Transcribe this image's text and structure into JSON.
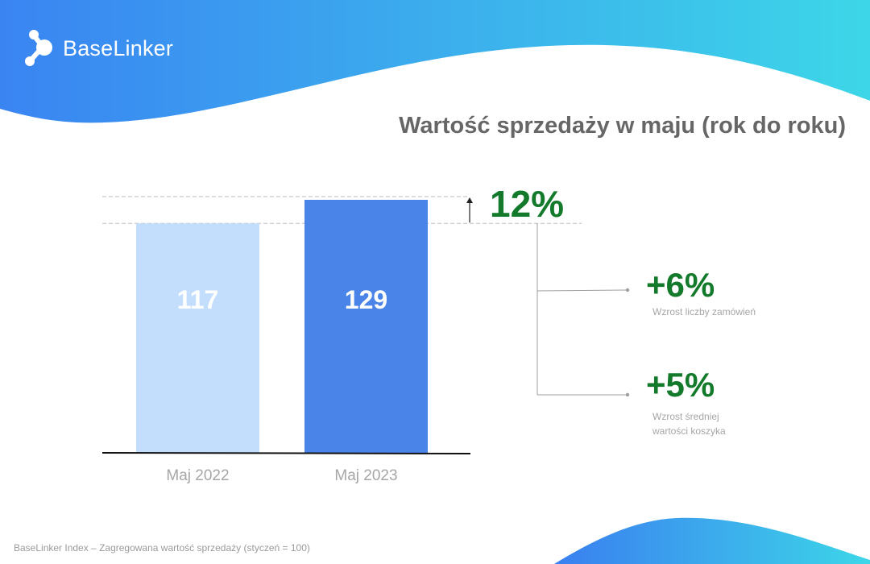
{
  "brand": {
    "name": "BaseLinker"
  },
  "colors": {
    "accent_blue": "#4a84e8",
    "light_blue": "#c2defc",
    "green": "#137a2c",
    "wave_start": "#3a84f2",
    "wave_end": "#3dd6e8"
  },
  "chart_data": {
    "type": "bar",
    "title": "Wartość sprzedaży w maju (rok do roku)",
    "categories": [
      "Maj 2022",
      "Maj 2023"
    ],
    "values": [
      117,
      129
    ],
    "data_labels": [
      "117",
      "129"
    ],
    "xlabel": "",
    "ylabel": "",
    "ylim": [
      0,
      132
    ],
    "grid": false,
    "change_label": "12%"
  },
  "breakdown": [
    {
      "value": "+6%",
      "label_lines": [
        "Wzrost liczby zamówień"
      ]
    },
    {
      "value": "+5%",
      "label_lines": [
        "Wzrost średniej",
        "wartości koszyka"
      ]
    }
  ],
  "footnote": "BaseLinker Index – Zagregowana wartość sprzedaży (styczeń = 100)"
}
